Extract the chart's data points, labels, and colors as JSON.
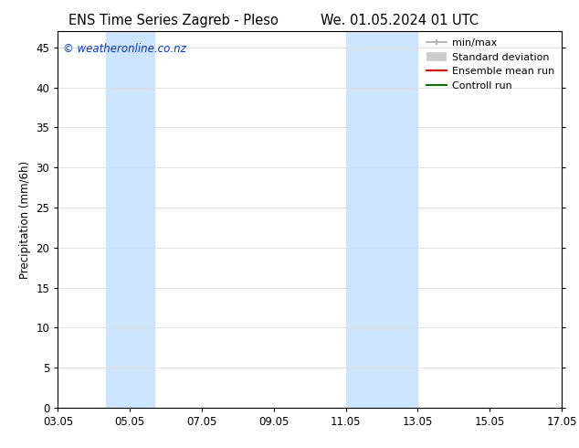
{
  "title_left": "ENS Time Series Zagreb - Pleso",
  "title_right": "We. 01.05.2024 01 UTC",
  "ylabel": "Precipitation (mm/6h)",
  "xlabel": "",
  "ylim": [
    0,
    47
  ],
  "yticks": [
    0,
    5,
    10,
    15,
    20,
    25,
    30,
    35,
    40,
    45
  ],
  "xtick_positions": [
    3,
    5,
    7,
    9,
    11,
    13,
    15,
    17
  ],
  "xtick_labels": [
    "03.05",
    "05.05",
    "07.05",
    "09.05",
    "11.05",
    "13.05",
    "15.05",
    "17.05"
  ],
  "xlim": [
    3,
    17
  ],
  "watermark": "© weatheronline.co.nz",
  "watermark_color": "#0033cc",
  "bg_color": "#ffffff",
  "plot_bg_color": "#ffffff",
  "shaded_regions": [
    {
      "x_start": 4.33,
      "x_end": 5.67,
      "color": "#cce5ff"
    },
    {
      "x_start": 11.0,
      "x_end": 13.0,
      "color": "#cce5ff"
    }
  ],
  "legend_items": [
    {
      "label": "min/max",
      "color": "#aaaaaa",
      "lw": 1.2,
      "style": "minmax"
    },
    {
      "label": "Standard deviation",
      "color": "#cccccc",
      "lw": 7,
      "style": "thick"
    },
    {
      "label": "Ensemble mean run",
      "color": "#ff0000",
      "lw": 1.5,
      "style": "line"
    },
    {
      "label": "Controll run",
      "color": "#007700",
      "lw": 1.5,
      "style": "line"
    }
  ],
  "grid_color": "#dddddd",
  "font_size_title": 10.5,
  "font_size_axis_label": 8.5,
  "font_size_tick": 8.5,
  "font_size_legend": 8,
  "font_size_watermark": 8.5
}
